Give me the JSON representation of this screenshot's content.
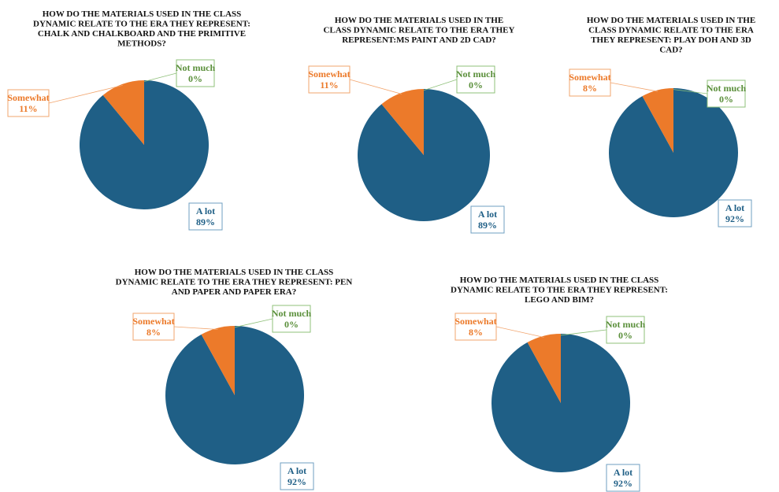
{
  "colors": {
    "a_lot": "#1f5f86",
    "somewhat": "#ec7a2a",
    "not_much": "#5a8f3a",
    "a_lot_box": "#6f9fc0",
    "somewhat_box": "#f2a56e",
    "not_much_box": "#8fc07a"
  },
  "chart_data": [
    {
      "type": "pie",
      "title_lines": [
        "HOW DO THE MATERIALS USED IN THE CLASS",
        "DYNAMIC RELATE TO THE ERA THEY REPRESENT:",
        "CHALK AND CHALKBOARD AND THE PRIMITIVE",
        "METHODS?"
      ],
      "categories": [
        "A lot",
        "Somewhat",
        "Not much"
      ],
      "values": [
        89,
        11,
        0
      ],
      "labels": [
        "89%",
        "11%",
        "0%"
      ]
    },
    {
      "type": "pie",
      "title_lines": [
        "HOW DO THE MATERIALS USED IN THE",
        "CLASS DYNAMIC RELATE TO THE ERA THEY",
        "REPRESENT:MS PAINT AND 2D CAD?"
      ],
      "categories": [
        "A lot",
        "Somewhat",
        "Not much"
      ],
      "values": [
        89,
        11,
        0
      ],
      "labels": [
        "89%",
        "11%",
        "0%"
      ]
    },
    {
      "type": "pie",
      "title_lines": [
        "HOW DO THE MATERIALS USED IN THE",
        "CLASS DYNAMIC RELATE TO THE ERA",
        "THEY REPRESENT: PLAY DOH AND 3D",
        "CAD?"
      ],
      "categories": [
        "A lot",
        "Somewhat",
        "Not much"
      ],
      "values": [
        92,
        8,
        0
      ],
      "labels": [
        "92%",
        "8%",
        "0%"
      ]
    },
    {
      "type": "pie",
      "title_lines": [
        "HOW DO THE MATERIALS USED IN THE CLASS",
        "DYNAMIC RELATE TO THE ERA THEY REPRESENT: PEN",
        "AND PAPER AND PAPER ERA?"
      ],
      "categories": [
        "A lot",
        "Somewhat",
        "Not much"
      ],
      "values": [
        92,
        8,
        0
      ],
      "labels": [
        "92%",
        "8%",
        "0%"
      ]
    },
    {
      "type": "pie",
      "title_lines": [
        "HOW DO THE MATERIALS USED IN THE CLASS",
        "DYNAMIC RELATE TO THE ERA THEY REPRESENT:",
        "LEGO AND BIM?"
      ],
      "categories": [
        "A lot",
        "Somewhat",
        "Not much"
      ],
      "values": [
        92,
        8,
        0
      ],
      "labels": [
        "92%",
        "8%",
        "0%"
      ]
    }
  ]
}
